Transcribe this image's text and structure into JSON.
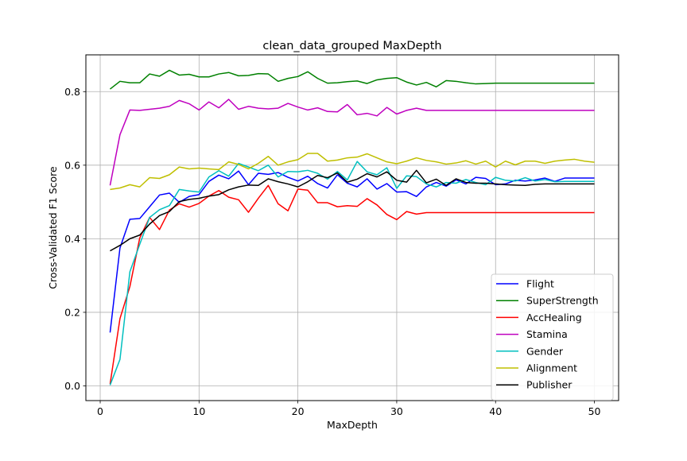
{
  "chart_data": {
    "type": "line",
    "title": "clean_data_grouped MaxDepth",
    "xlabel": "MaxDepth",
    "ylabel": "Cross-Validated F1 Score",
    "xlim": [
      -1.45,
      52.45
    ],
    "ylim": [
      -0.04,
      0.9
    ],
    "xticks": [
      0,
      10,
      20,
      30,
      40,
      50
    ],
    "xtick_labels": [
      "0",
      "10",
      "20",
      "30",
      "40",
      "50"
    ],
    "yticks": [
      0.0,
      0.2,
      0.4,
      0.6,
      0.8
    ],
    "ytick_labels": [
      "0.0",
      "0.2",
      "0.4",
      "0.6",
      "0.8"
    ],
    "grid": true,
    "legend_position": "lower-right",
    "x": [
      1,
      2,
      3,
      4,
      5,
      6,
      7,
      8,
      9,
      10,
      11,
      12,
      13,
      14,
      15,
      16,
      17,
      18,
      19,
      20,
      21,
      22,
      23,
      24,
      25,
      26,
      27,
      28,
      29,
      30,
      31,
      32,
      33,
      34,
      35,
      36,
      37,
      38,
      39,
      40,
      41,
      42,
      43,
      44,
      45,
      46,
      47,
      48,
      49,
      50
    ],
    "series": [
      {
        "name": "Flight",
        "color": "#0000ff",
        "values": [
          0.145,
          0.375,
          0.453,
          0.455,
          0.487,
          0.519,
          0.524,
          0.499,
          0.515,
          0.52,
          0.556,
          0.573,
          0.563,
          0.584,
          0.547,
          0.578,
          0.575,
          0.58,
          0.567,
          0.557,
          0.57,
          0.55,
          0.538,
          0.574,
          0.551,
          0.541,
          0.563,
          0.535,
          0.55,
          0.527,
          0.528,
          0.515,
          0.541,
          0.553,
          0.543,
          0.56,
          0.549,
          0.567,
          0.564,
          0.547,
          0.549,
          0.559,
          0.557,
          0.56,
          0.565,
          0.556,
          0.565,
          0.565,
          0.565,
          0.565
        ]
      },
      {
        "name": "SuperStrength",
        "color": "#008000",
        "values": [
          0.807,
          0.828,
          0.824,
          0.824,
          0.848,
          0.842,
          0.858,
          0.845,
          0.847,
          0.84,
          0.84,
          0.848,
          0.852,
          0.843,
          0.844,
          0.849,
          0.848,
          0.828,
          0.836,
          0.841,
          0.854,
          0.836,
          0.823,
          0.824,
          0.827,
          0.829,
          0.822,
          0.832,
          0.836,
          0.838,
          0.826,
          0.818,
          0.825,
          0.813,
          0.83,
          0.828,
          0.824,
          0.821,
          0.822,
          0.823,
          0.823,
          0.823,
          0.823,
          0.823,
          0.823,
          0.823,
          0.823,
          0.823,
          0.823,
          0.823
        ]
      },
      {
        "name": "AccHealing",
        "color": "#ff0000",
        "values": [
          0.005,
          0.183,
          0.27,
          0.402,
          0.458,
          0.425,
          0.478,
          0.495,
          0.486,
          0.496,
          0.516,
          0.531,
          0.513,
          0.506,
          0.472,
          0.51,
          0.545,
          0.495,
          0.476,
          0.535,
          0.532,
          0.498,
          0.498,
          0.487,
          0.49,
          0.488,
          0.509,
          0.492,
          0.466,
          0.452,
          0.474,
          0.467,
          0.471,
          0.471,
          0.471,
          0.471,
          0.471,
          0.471,
          0.471,
          0.471,
          0.471,
          0.471,
          0.471,
          0.471,
          0.471,
          0.471,
          0.471,
          0.471,
          0.471,
          0.471
        ]
      },
      {
        "name": "Stamina",
        "color": "#bf00bf",
        "values": [
          0.545,
          0.683,
          0.75,
          0.749,
          0.752,
          0.755,
          0.76,
          0.776,
          0.767,
          0.75,
          0.772,
          0.756,
          0.779,
          0.752,
          0.76,
          0.755,
          0.753,
          0.755,
          0.768,
          0.758,
          0.75,
          0.756,
          0.746,
          0.745,
          0.765,
          0.737,
          0.741,
          0.734,
          0.757,
          0.739,
          0.749,
          0.755,
          0.749,
          0.749,
          0.749,
          0.749,
          0.749,
          0.749,
          0.749,
          0.749,
          0.749,
          0.749,
          0.749,
          0.749,
          0.749,
          0.749,
          0.749,
          0.749,
          0.749,
          0.749
        ]
      },
      {
        "name": "Gender",
        "color": "#00bfbf",
        "values": [
          0.002,
          0.072,
          0.31,
          0.385,
          0.458,
          0.479,
          0.49,
          0.534,
          0.53,
          0.527,
          0.568,
          0.585,
          0.57,
          0.605,
          0.595,
          0.585,
          0.6,
          0.568,
          0.583,
          0.582,
          0.586,
          0.578,
          0.562,
          0.583,
          0.56,
          0.61,
          0.582,
          0.574,
          0.593,
          0.537,
          0.571,
          0.569,
          0.549,
          0.541,
          0.553,
          0.551,
          0.561,
          0.553,
          0.547,
          0.567,
          0.559,
          0.557,
          0.566,
          0.557,
          0.561,
          0.555,
          0.556,
          0.556,
          0.556,
          0.556
        ]
      },
      {
        "name": "Alignment",
        "color": "#bfbf00",
        "values": [
          0.534,
          0.538,
          0.547,
          0.541,
          0.566,
          0.564,
          0.574,
          0.595,
          0.59,
          0.592,
          0.59,
          0.588,
          0.609,
          0.602,
          0.59,
          0.605,
          0.624,
          0.6,
          0.609,
          0.615,
          0.632,
          0.632,
          0.611,
          0.614,
          0.62,
          0.622,
          0.631,
          0.62,
          0.609,
          0.604,
          0.611,
          0.62,
          0.613,
          0.609,
          0.603,
          0.606,
          0.612,
          0.603,
          0.611,
          0.595,
          0.611,
          0.601,
          0.611,
          0.611,
          0.605,
          0.611,
          0.614,
          0.616,
          0.611,
          0.608
        ]
      },
      {
        "name": "Publisher",
        "color": "#000000",
        "values": [
          0.367,
          0.382,
          0.4,
          0.41,
          0.44,
          0.463,
          0.474,
          0.501,
          0.507,
          0.51,
          0.516,
          0.52,
          0.533,
          0.541,
          0.546,
          0.545,
          0.563,
          0.555,
          0.549,
          0.541,
          0.555,
          0.572,
          0.566,
          0.579,
          0.554,
          0.562,
          0.577,
          0.568,
          0.582,
          0.559,
          0.554,
          0.586,
          0.552,
          0.562,
          0.545,
          0.563,
          0.553,
          0.551,
          0.551,
          0.549,
          0.547,
          0.546,
          0.545,
          0.548,
          0.549,
          0.549,
          0.549,
          0.549,
          0.549,
          0.549
        ]
      }
    ]
  }
}
